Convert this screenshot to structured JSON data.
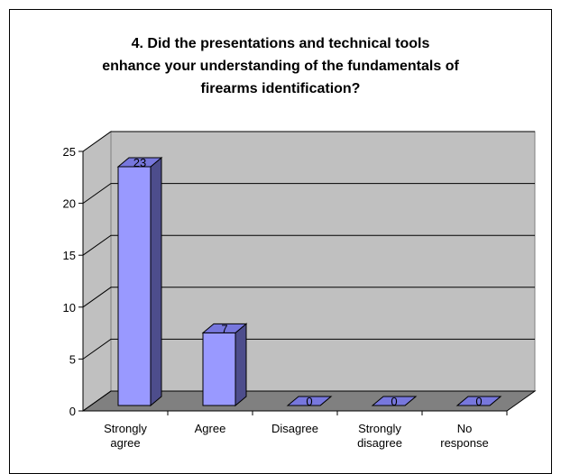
{
  "chart_data": {
    "type": "bar",
    "title": "4. Did the presentations and technical tools enhance your understanding of the fundamentals of firearms identification?",
    "categories": [
      "Strongly agree",
      "Agree",
      "Disagree",
      "Strongly disagree",
      "No response"
    ],
    "values": [
      23,
      7,
      0,
      0,
      0
    ],
    "color": "#9999ff",
    "ylim": [
      0,
      25
    ],
    "yticks": [
      0,
      5,
      10,
      15,
      20,
      25
    ],
    "grid": true
  }
}
